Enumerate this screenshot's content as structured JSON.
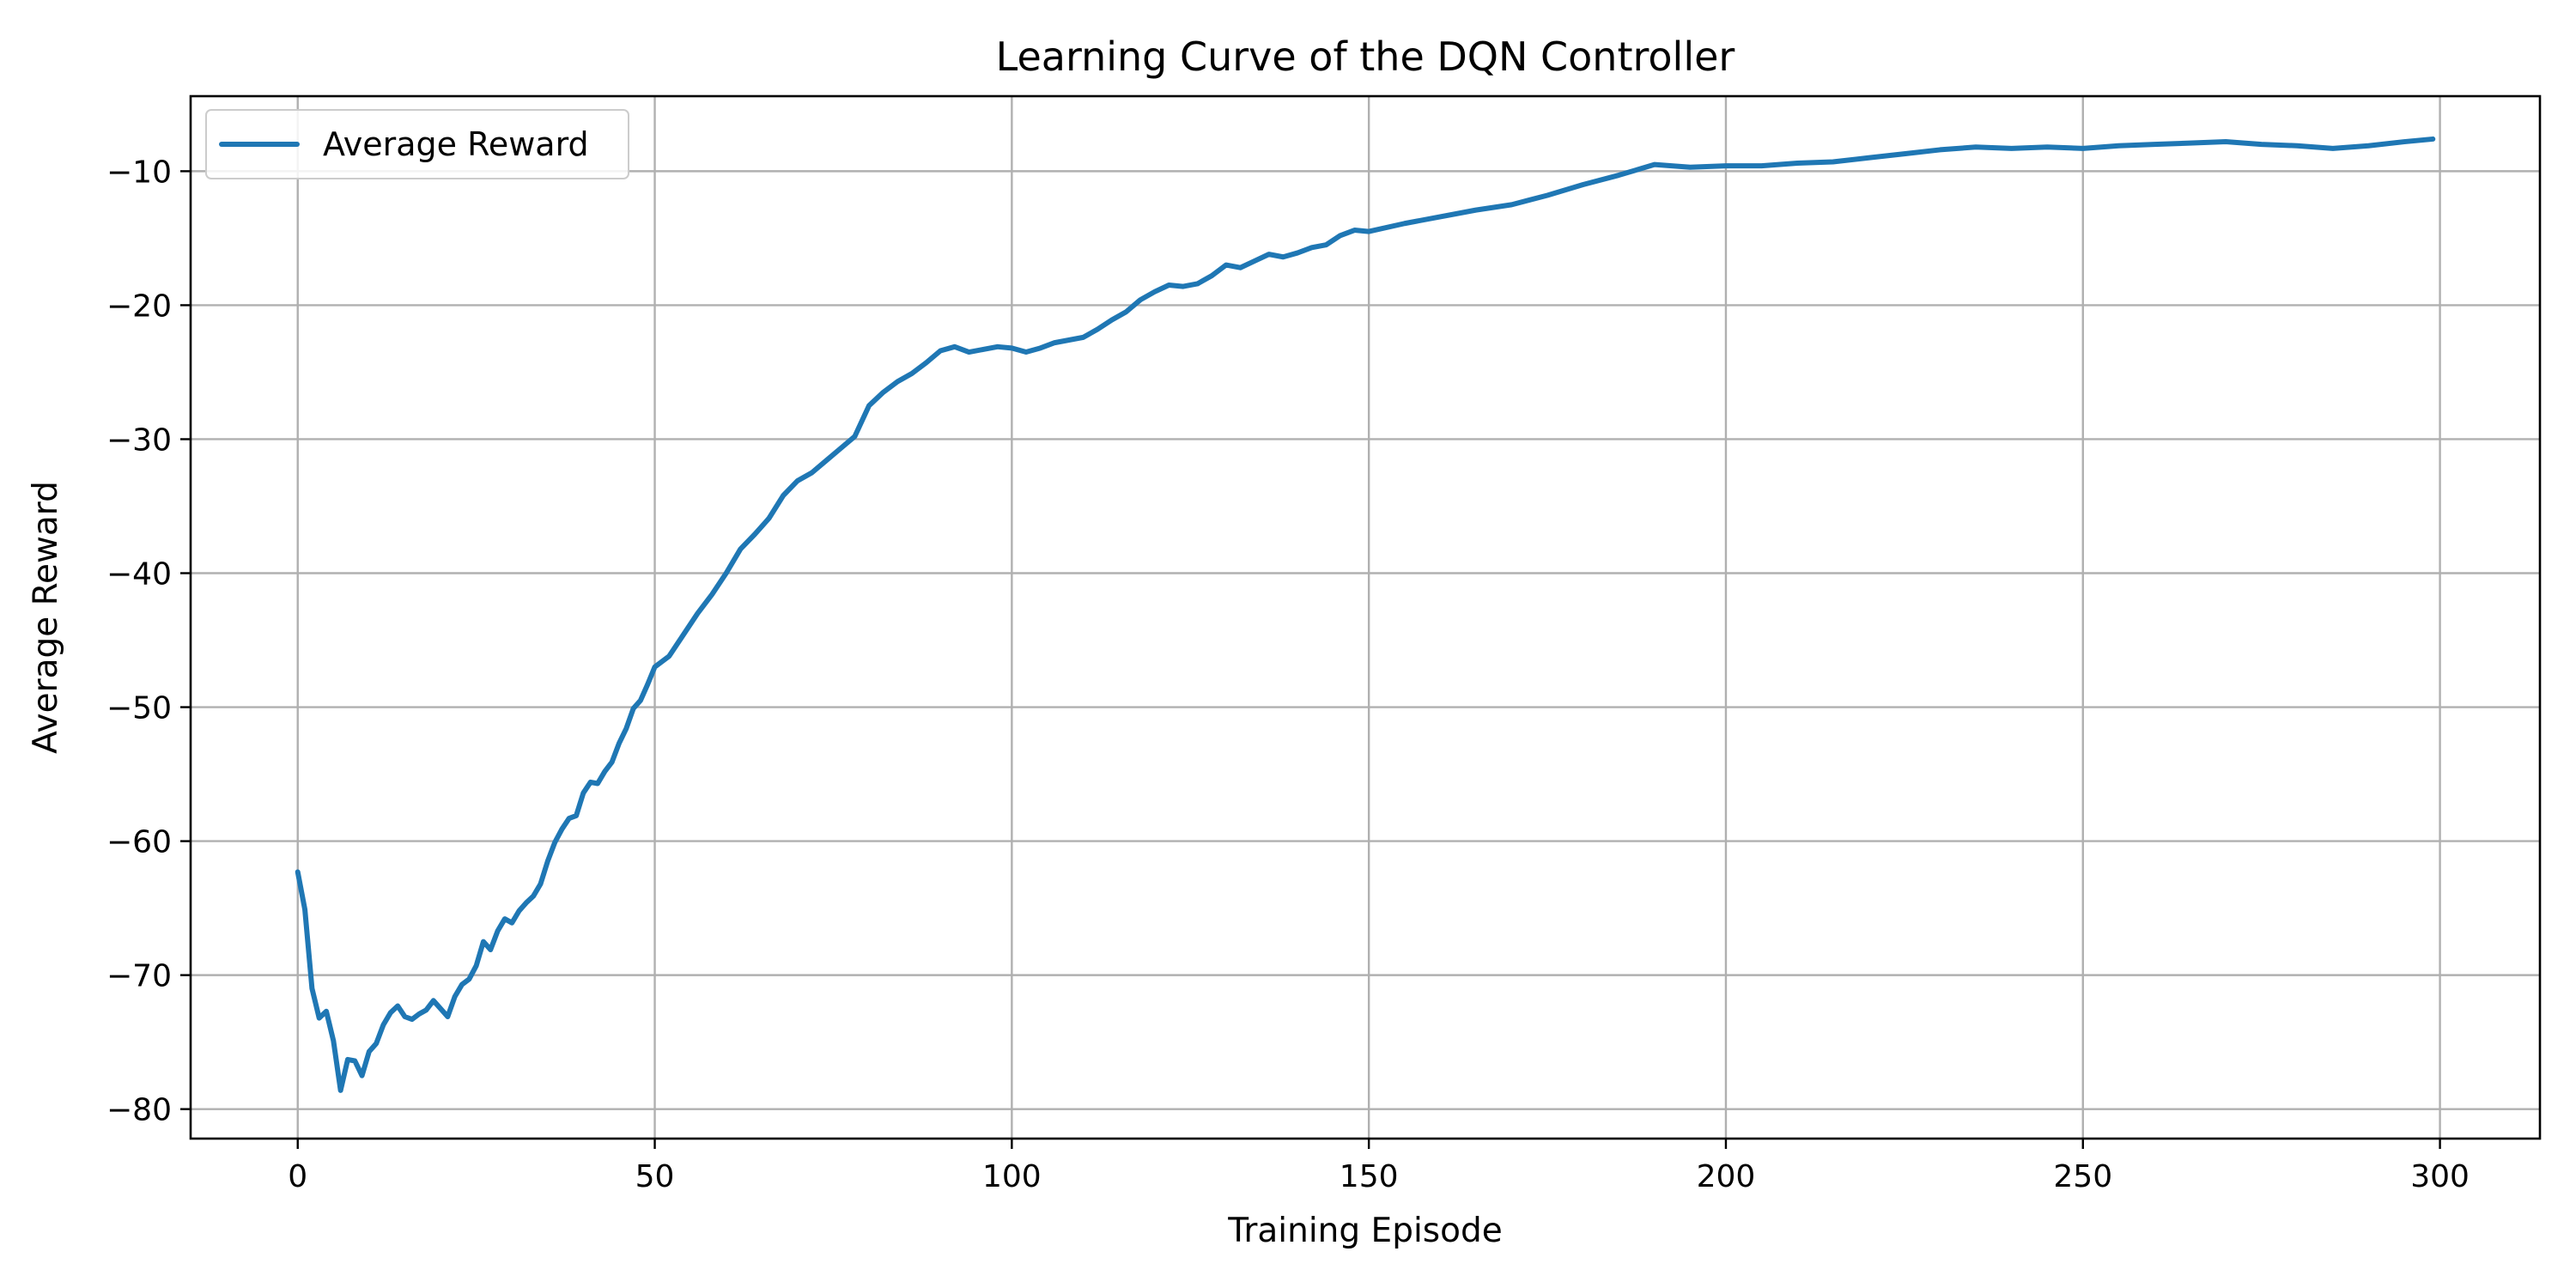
{
  "chart_data": {
    "type": "line",
    "title": "Learning Curve of the DQN Controller",
    "xlabel": "Training Episode",
    "ylabel": "Average Reward",
    "xlim": [
      -15,
      314
    ],
    "ylim": [
      -82.2,
      -4.4
    ],
    "xticks": [
      0,
      50,
      100,
      150,
      200,
      250,
      300
    ],
    "yticks": [
      -80,
      -70,
      -60,
      -50,
      -40,
      -30,
      -20,
      -10
    ],
    "xtick_labels": [
      "0",
      "50",
      "100",
      "150",
      "200",
      "250",
      "300"
    ],
    "ytick_labels": [
      "−80",
      "−70",
      "−60",
      "−50",
      "−40",
      "−30",
      "−20",
      "−10"
    ],
    "grid": true,
    "legend": {
      "position": "upper-left",
      "entries": [
        "Average Reward"
      ]
    },
    "series": [
      {
        "name": "Average Reward",
        "color": "#1f77b4",
        "x": [
          0,
          1,
          2,
          3,
          4,
          5,
          6,
          7,
          8,
          9,
          10,
          11,
          12,
          13,
          14,
          15,
          16,
          17,
          18,
          19,
          20,
          21,
          22,
          23,
          24,
          25,
          26,
          27,
          28,
          29,
          30,
          31,
          32,
          33,
          34,
          35,
          36,
          37,
          38,
          39,
          40,
          41,
          42,
          43,
          44,
          45,
          46,
          47,
          48,
          49,
          50,
          52,
          54,
          56,
          58,
          60,
          62,
          64,
          66,
          68,
          70,
          72,
          74,
          76,
          78,
          80,
          82,
          84,
          86,
          88,
          90,
          92,
          94,
          96,
          98,
          100,
          102,
          104,
          106,
          108,
          110,
          112,
          114,
          116,
          118,
          120,
          122,
          124,
          126,
          128,
          130,
          132,
          134,
          136,
          138,
          140,
          142,
          144,
          146,
          148,
          150,
          155,
          160,
          165,
          170,
          175,
          180,
          185,
          190,
          195,
          200,
          205,
          210,
          215,
          220,
          225,
          230,
          235,
          240,
          245,
          250,
          255,
          260,
          265,
          270,
          275,
          280,
          285,
          290,
          295,
          299
        ],
        "values": [
          -62.3,
          -65.1,
          -71.0,
          -73.2,
          -72.7,
          -74.9,
          -78.6,
          -76.3,
          -76.4,
          -77.5,
          -75.7,
          -75.1,
          -73.7,
          -72.8,
          -72.3,
          -73.1,
          -73.3,
          -72.9,
          -72.6,
          -71.9,
          -72.5,
          -73.1,
          -71.6,
          -70.7,
          -70.3,
          -69.3,
          -67.5,
          -68.1,
          -66.7,
          -65.8,
          -66.1,
          -65.2,
          -64.6,
          -64.1,
          -63.2,
          -61.5,
          -60.1,
          -59.1,
          -58.3,
          -58.1,
          -56.4,
          -55.6,
          -55.7,
          -54.8,
          -54.1,
          -52.7,
          -51.6,
          -50.1,
          -49.5,
          -48.3,
          -47.0,
          -46.2,
          -44.6,
          -43.0,
          -41.6,
          -40.0,
          -38.2,
          -37.1,
          -35.9,
          -34.2,
          -33.1,
          -32.5,
          -31.6,
          -30.7,
          -29.8,
          -27.5,
          -26.5,
          -25.7,
          -25.1,
          -24.3,
          -23.4,
          -23.1,
          -23.5,
          -23.3,
          -23.1,
          -23.2,
          -23.5,
          -23.2,
          -22.8,
          -22.6,
          -22.4,
          -21.8,
          -21.1,
          -20.5,
          -19.6,
          -19.0,
          -18.5,
          -18.6,
          -18.4,
          -17.8,
          -17.0,
          -17.2,
          -16.7,
          -16.2,
          -16.4,
          -16.1,
          -15.7,
          -15.5,
          -14.8,
          -14.4,
          -14.5,
          -13.9,
          -13.4,
          -12.9,
          -12.5,
          -11.8,
          -11.0,
          -10.3,
          -9.5,
          -9.7,
          -9.6,
          -9.6,
          -9.4,
          -9.3,
          -9.0,
          -8.7,
          -8.4,
          -8.2,
          -8.3,
          -8.2,
          -8.3,
          -8.1,
          -8.0,
          -7.9,
          -7.8,
          -8.0,
          -8.1,
          -8.3,
          -8.1,
          -7.8,
          -7.6
        ]
      }
    ]
  }
}
